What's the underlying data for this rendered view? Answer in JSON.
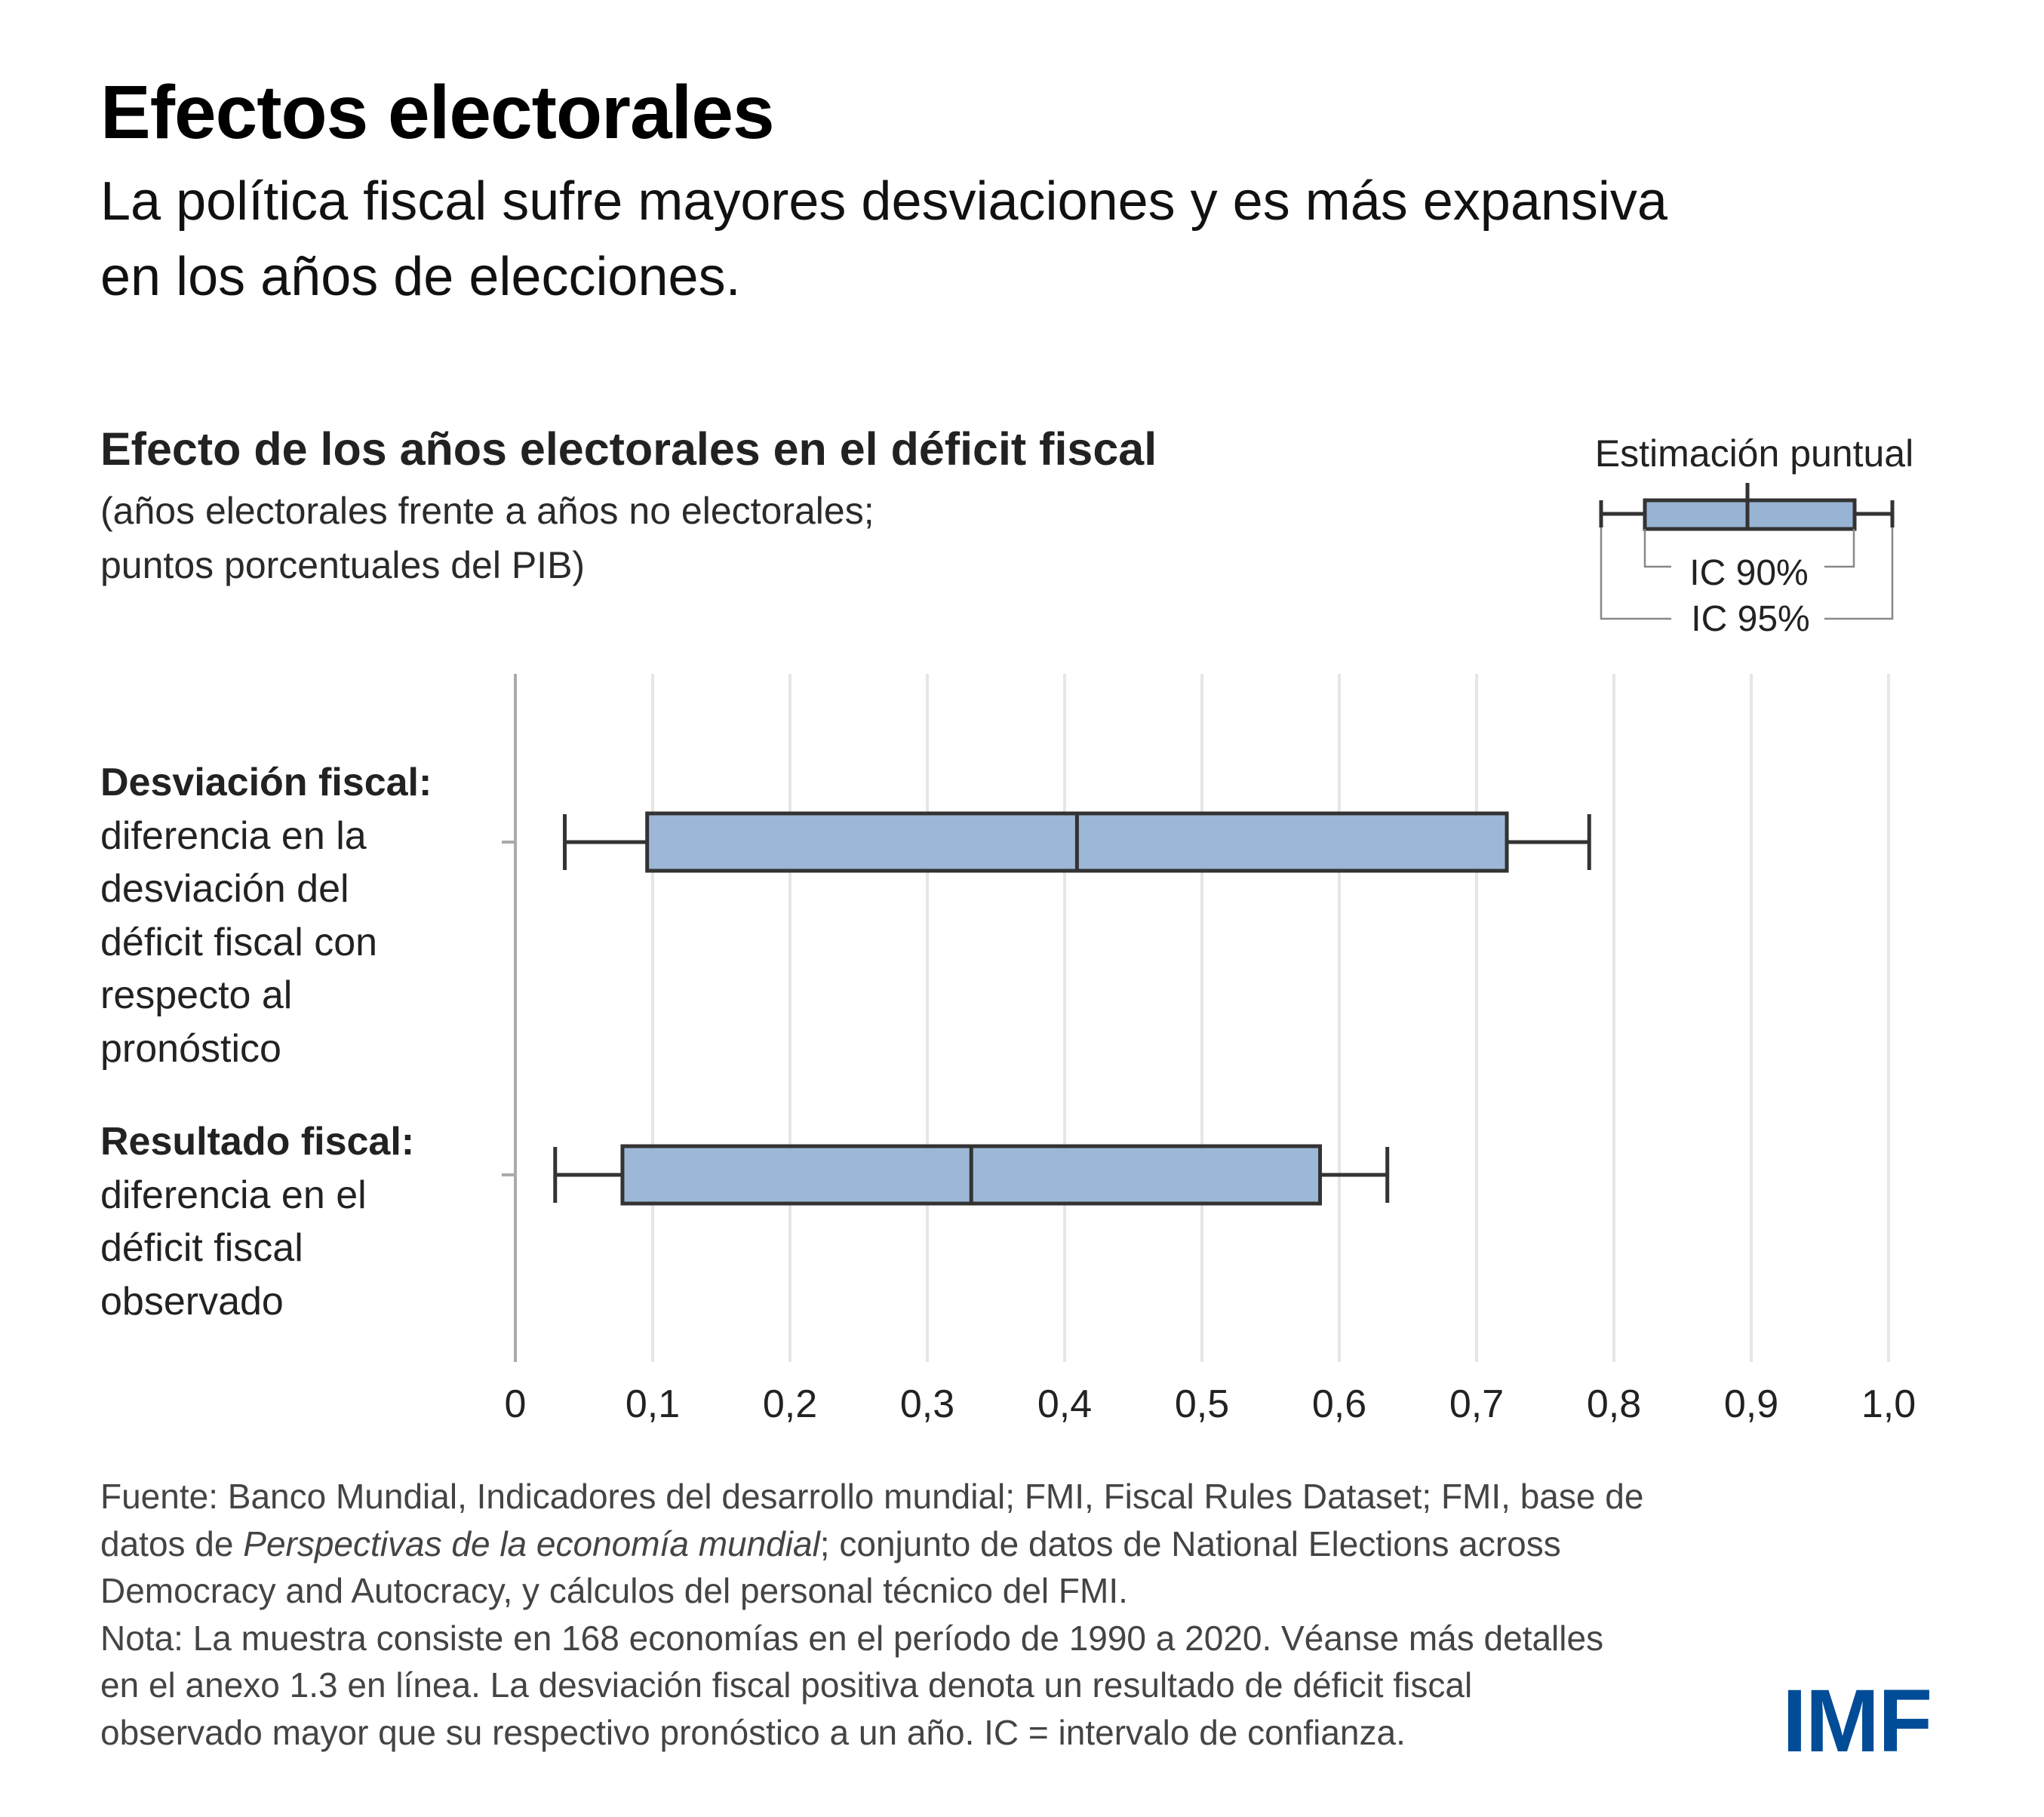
{
  "header": {
    "title": "Efectos electorales",
    "subtitle_lines": [
      "La política fiscal sufre mayores desviaciones y es más expansiva",
      "en los años de elecciones."
    ]
  },
  "chart_header": {
    "title": "Efecto de los años electorales en el déficit fiscal",
    "sub_lines": [
      "(años electorales frente a años no electorales;",
      "puntos porcentuales del PIB)"
    ]
  },
  "legend": {
    "point_label": "Estimación puntual",
    "ci90_label": "IC 90%",
    "ci95_label": "IC 95%"
  },
  "rows": [
    {
      "bold": "Desviación fiscal:",
      "lines": [
        "diferencia en la",
        "desviación del",
        "déficit fiscal con",
        "respecto al",
        "pronóstico"
      ]
    },
    {
      "bold": "Resultado fiscal:",
      "lines": [
        "diferencia en el",
        "déficit fiscal",
        "observado"
      ]
    }
  ],
  "chart_data": {
    "type": "boxplot-ci",
    "title": "Efecto de los años electorales en el déficit fiscal",
    "subtitle": "(años electorales frente a años no electorales; puntos porcentuales del PIB)",
    "xlabel": "",
    "ylabel": "",
    "xlim": [
      0,
      1.0
    ],
    "grid": true,
    "orientation": "horizontal",
    "legend_position": "top-right",
    "x_ticks": [
      0,
      0.1,
      0.2,
      0.3,
      0.4,
      0.5,
      0.6,
      0.7,
      0.8,
      0.9,
      1.0
    ],
    "x_tick_labels": [
      "0",
      "0,1",
      "0,2",
      "0,3",
      "0,4",
      "0,5",
      "0,6",
      "0,7",
      "0,8",
      "0,9",
      "1,0"
    ],
    "categories": [
      "Desviación fiscal",
      "Resultado fiscal"
    ],
    "series": [
      {
        "name": "Desviación fiscal",
        "ci95_low": 0.036,
        "ci90_low": 0.096,
        "estimate": 0.409,
        "ci90_high": 0.722,
        "ci95_high": 0.782
      },
      {
        "name": "Resultado fiscal",
        "ci95_low": 0.029,
        "ci90_low": 0.078,
        "estimate": 0.332,
        "ci90_high": 0.586,
        "ci95_high": 0.635
      }
    ],
    "colors": {
      "box_fill": "#98B4D4",
      "box_stroke": "#333333",
      "grid": "#E6E6E6",
      "axis": "#AAAAAA"
    }
  },
  "footer": {
    "lines": [
      {
        "parts": [
          {
            "text": "Fuente: Banco Mundial, Indicadores del desarrollo mundial; FMI, Fiscal Rules Dataset; FMI, base de",
            "italic": false
          }
        ]
      },
      {
        "parts": [
          {
            "text": "datos de ",
            "italic": false
          },
          {
            "text": "Perspectivas de la economía mundial",
            "italic": true
          },
          {
            "text": "; conjunto de datos de National Elections across",
            "italic": false
          }
        ]
      },
      {
        "parts": [
          {
            "text": "Democracy and Autocracy, y cálculos del personal técnico del FMI.",
            "italic": false
          }
        ]
      },
      {
        "parts": [
          {
            "text": "Nota: La muestra consiste en 168 economías en el período de 1990 a 2020. Véanse más detalles",
            "italic": false
          }
        ]
      },
      {
        "parts": [
          {
            "text": "en el anexo 1.3 en línea. La desviación fiscal positiva denota un resultado de déficit fiscal",
            "italic": false
          }
        ]
      },
      {
        "parts": [
          {
            "text": "observado mayor que su respectivo pronóstico a un año. IC = intervalo de confianza.",
            "italic": false
          }
        ]
      }
    ]
  },
  "logo": {
    "text": "IMF",
    "color": "#004C97"
  }
}
